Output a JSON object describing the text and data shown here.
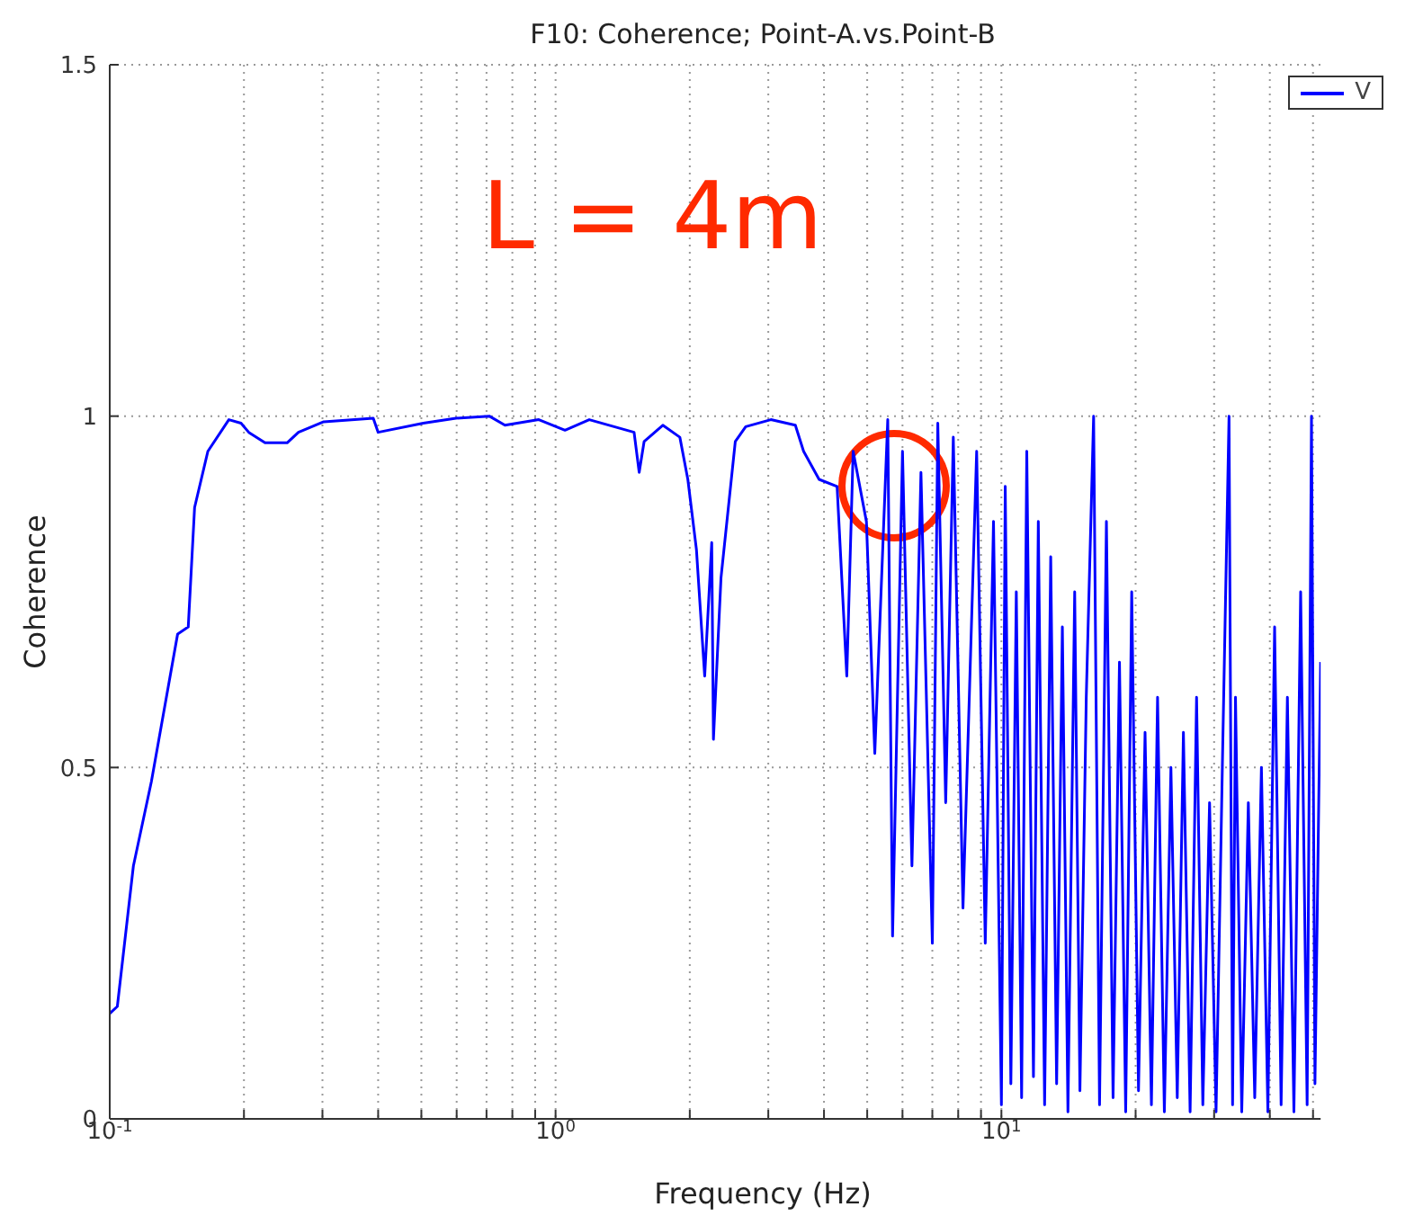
{
  "chart_data": {
    "type": "line",
    "title": "F10: Coherence; Point-A.vs.Point-B",
    "xlabel": "Frequency (Hz)",
    "ylabel": "Coherence",
    "annotations": [
      "L = 4m"
    ],
    "log": "x",
    "grid": true,
    "legend": "top right",
    "marker": "none",
    "line_style": "solid",
    "xlim": [
      0.1,
      52
    ],
    "ylim": [
      0,
      1.5
    ],
    "xticks": [
      {
        "value": 0.1,
        "label": "10$^{-1}$"
      },
      {
        "value": 0.2,
        "label": null
      },
      {
        "value": 0.3,
        "label": null
      },
      {
        "value": 0.4,
        "label": null
      },
      {
        "value": 0.5,
        "label": null
      },
      {
        "value": 0.6,
        "label": null
      },
      {
        "value": 0.7,
        "label": null
      },
      {
        "value": 0.8,
        "label": null
      },
      {
        "value": 0.9,
        "label": null
      },
      {
        "value": 1,
        "label": "10$^{0}$"
      },
      {
        "value": 2,
        "label": null
      },
      {
        "value": 3,
        "label": null
      },
      {
        "value": 4,
        "label": null
      },
      {
        "value": 5,
        "label": null
      },
      {
        "value": 6,
        "label": null
      },
      {
        "value": 7,
        "label": null
      },
      {
        "value": 8,
        "label": null
      },
      {
        "value": 9,
        "label": null
      },
      {
        "value": 10,
        "label": "10$^{1}$"
      },
      {
        "value": 20,
        "label": null
      },
      {
        "value": 30,
        "label": null
      },
      {
        "value": 40,
        "label": null
      },
      {
        "value": 50,
        "label": null
      }
    ],
    "yticks": [
      0,
      0.5,
      1,
      1.5
    ],
    "series": [
      {
        "name": "V",
        "color": "#0000ff",
        "x": [
          0.1,
          0.104,
          0.113,
          0.124,
          0.142,
          0.15,
          0.155,
          0.166,
          0.185,
          0.197,
          0.205,
          0.223,
          0.25,
          0.265,
          0.302,
          0.39,
          0.4,
          0.505,
          0.598,
          0.71,
          0.77,
          0.917,
          1.05,
          1.19,
          1.5,
          1.54,
          1.58,
          1.74,
          1.9,
          1.98,
          2.07,
          2.16,
          2.24,
          2.26,
          2.31,
          2.35,
          2.53,
          2.67,
          3.04,
          3.45,
          3.6,
          3.9,
          4.28,
          4.5,
          4.65,
          4.98,
          5.2,
          5.56,
          5.7,
          6.0,
          6.3,
          6.6,
          7.0,
          7.2,
          7.5,
          7.8,
          8.2,
          8.8,
          9.2,
          9.6,
          10.0,
          10.2,
          10.5,
          10.8,
          11.1,
          11.4,
          11.8,
          12.1,
          12.5,
          12.9,
          13.3,
          13.7,
          14.1,
          14.6,
          15.0,
          15.5,
          16.1,
          16.6,
          17.2,
          17.8,
          18.4,
          19.0,
          19.6,
          20.3,
          21.0,
          21.7,
          22.4,
          23.2,
          24.0,
          24.8,
          25.6,
          26.5,
          27.4,
          28.3,
          29.3,
          30.3,
          31.3,
          32.4,
          33.0,
          33.5,
          34.6,
          35.8,
          37.0,
          38.3,
          39.6,
          41.0,
          42.4,
          43.8,
          45.3,
          46.9,
          48.5,
          49.6,
          50.5,
          52.0
        ],
        "values": [
          0.15,
          0.16,
          0.36,
          0.48,
          0.69,
          0.7,
          0.87,
          0.95,
          0.995,
          0.99,
          0.977,
          0.962,
          0.962,
          0.977,
          0.992,
          0.997,
          0.977,
          0.99,
          0.997,
          1.0,
          0.987,
          0.995,
          0.98,
          0.995,
          0.977,
          0.92,
          0.964,
          0.987,
          0.97,
          0.91,
          0.81,
          0.63,
          0.82,
          0.54,
          0.67,
          0.77,
          0.964,
          0.985,
          0.995,
          0.987,
          0.95,
          0.91,
          0.9,
          0.63,
          0.95,
          0.85,
          0.52,
          0.995,
          0.26,
          0.95,
          0.36,
          0.92,
          0.25,
          0.99,
          0.45,
          0.97,
          0.3,
          0.95,
          0.25,
          0.85,
          0.02,
          0.9,
          0.05,
          0.75,
          0.03,
          0.95,
          0.06,
          0.85,
          0.02,
          0.8,
          0.05,
          0.7,
          0.01,
          0.75,
          0.04,
          0.6,
          1.0,
          0.02,
          0.85,
          0.03,
          0.65,
          0.01,
          0.75,
          0.04,
          0.55,
          0.02,
          0.6,
          0.01,
          0.5,
          0.03,
          0.55,
          0.01,
          0.6,
          0.02,
          0.45,
          0.01,
          0.5,
          1.0,
          0.02,
          0.6,
          0.01,
          0.45,
          0.03,
          0.5,
          0.01,
          0.7,
          0.02,
          0.6,
          0.01,
          0.75,
          0.02,
          1.0,
          0.05,
          0.65
        ]
      }
    ]
  }
}
